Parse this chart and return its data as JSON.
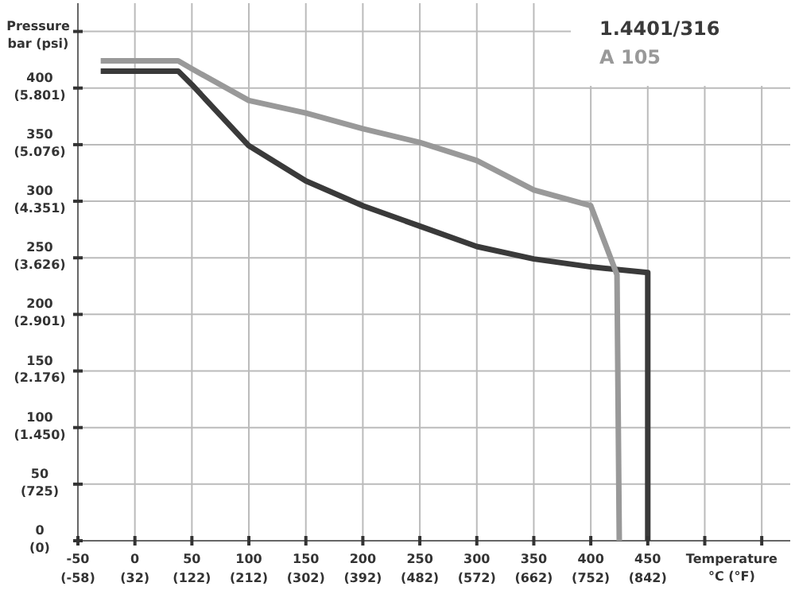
{
  "chart_data": {
    "type": "line",
    "xlabel": "Temperature\n°C (°F)",
    "ylabel": "Pressure\nbar (psi)",
    "xlim": [
      -50,
      575
    ],
    "ylim": [
      0,
      475
    ],
    "x2lim": [
      -58,
      1067
    ],
    "y2lim": [
      0,
      6889
    ],
    "xticks": [
      -50,
      0,
      50,
      100,
      150,
      200,
      250,
      300,
      350,
      400,
      450,
      {
        "value": 500,
        "label": null
      },
      {
        "value": 550,
        "label": null
      }
    ],
    "x2ticks": [
      {
        "value": -58,
        "label": "(-58)"
      },
      {
        "value": 32,
        "label": "(32)"
      },
      {
        "value": 122,
        "label": "(122)"
      },
      {
        "value": 212,
        "label": "(212)"
      },
      {
        "value": 302,
        "label": "(302)"
      },
      {
        "value": 392,
        "label": "(392)"
      },
      {
        "value": 482,
        "label": "(482)"
      },
      {
        "value": 572,
        "label": "(572)"
      },
      {
        "value": 662,
        "label": "(662)"
      },
      {
        "value": 752,
        "label": "(752)"
      },
      {
        "value": 842,
        "label": "(842)"
      }
    ],
    "yticks": [
      0,
      50,
      100,
      150,
      200,
      250,
      300,
      350,
      400,
      {
        "value": 450,
        "label": null
      }
    ],
    "y2ticks": [
      {
        "value": 0,
        "label": "(0)"
      },
      {
        "value": 725,
        "label": "(725)"
      },
      {
        "value": 1450,
        "label": "(1.450)"
      },
      {
        "value": 2176,
        "label": "(2.176)"
      },
      {
        "value": 2901,
        "label": "(2.901)"
      },
      {
        "value": 3626,
        "label": "(3.626)"
      },
      {
        "value": 4351,
        "label": "(4.351)"
      },
      {
        "value": 5076,
        "label": "(5.076)"
      },
      {
        "value": 5801,
        "label": "(5.801)"
      }
    ],
    "grid": true,
    "legend": "top right",
    "line_style": "solid",
    "series": [
      {
        "name": "1.4401/316",
        "color": "#3a3a3a",
        "x": [
          -30,
          38,
          50,
          100,
          150,
          200,
          250,
          300,
          350,
          400,
          450,
          450
        ],
        "values": [
          415,
          415,
          403,
          349,
          318,
          296,
          278,
          260,
          249,
          242,
          237,
          0
        ]
      },
      {
        "name": "A 105",
        "color": "#999999",
        "x": [
          -30,
          38,
          50,
          100,
          150,
          200,
          250,
          300,
          350,
          400,
          423,
          425
        ],
        "values": [
          424,
          424,
          417,
          389,
          378,
          364,
          352,
          336,
          310,
          296,
          235,
          0
        ]
      }
    ]
  }
}
